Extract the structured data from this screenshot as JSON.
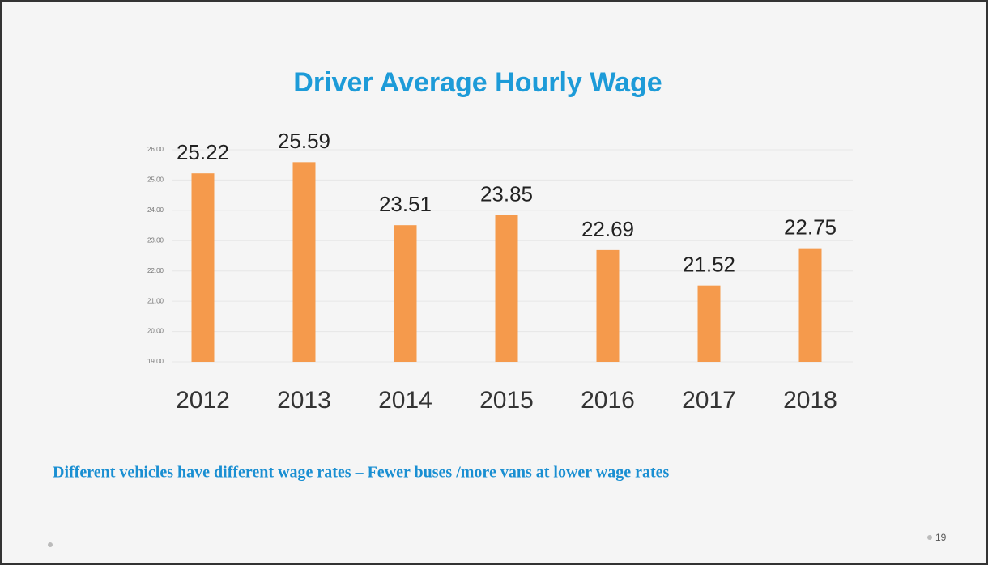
{
  "chart_data": {
    "type": "bar",
    "title": "Driver Average Hourly Wage",
    "categories": [
      "2012",
      "2013",
      "2014",
      "2015",
      "2016",
      "2017",
      "2018"
    ],
    "values": [
      25.22,
      25.59,
      23.51,
      23.85,
      22.69,
      21.52,
      22.75
    ],
    "color": "#f59a4c",
    "ylim": [
      19,
      26
    ],
    "yticks": [
      {
        "value": 19,
        "label": "19.00"
      },
      {
        "value": 20,
        "label": "20.00"
      },
      {
        "value": 21,
        "label": "21.00"
      },
      {
        "value": 22,
        "label": "22.00"
      },
      {
        "value": 23,
        "label": "23.00"
      },
      {
        "value": 24,
        "label": "24.00"
      },
      {
        "value": 25,
        "label": "25.00"
      },
      {
        "value": 26,
        "label": "26.00"
      }
    ],
    "grid": true
  },
  "caption": "Different vehicles have different wage rates – Fewer buses /more vans at lower wage rates",
  "page_number": "19"
}
